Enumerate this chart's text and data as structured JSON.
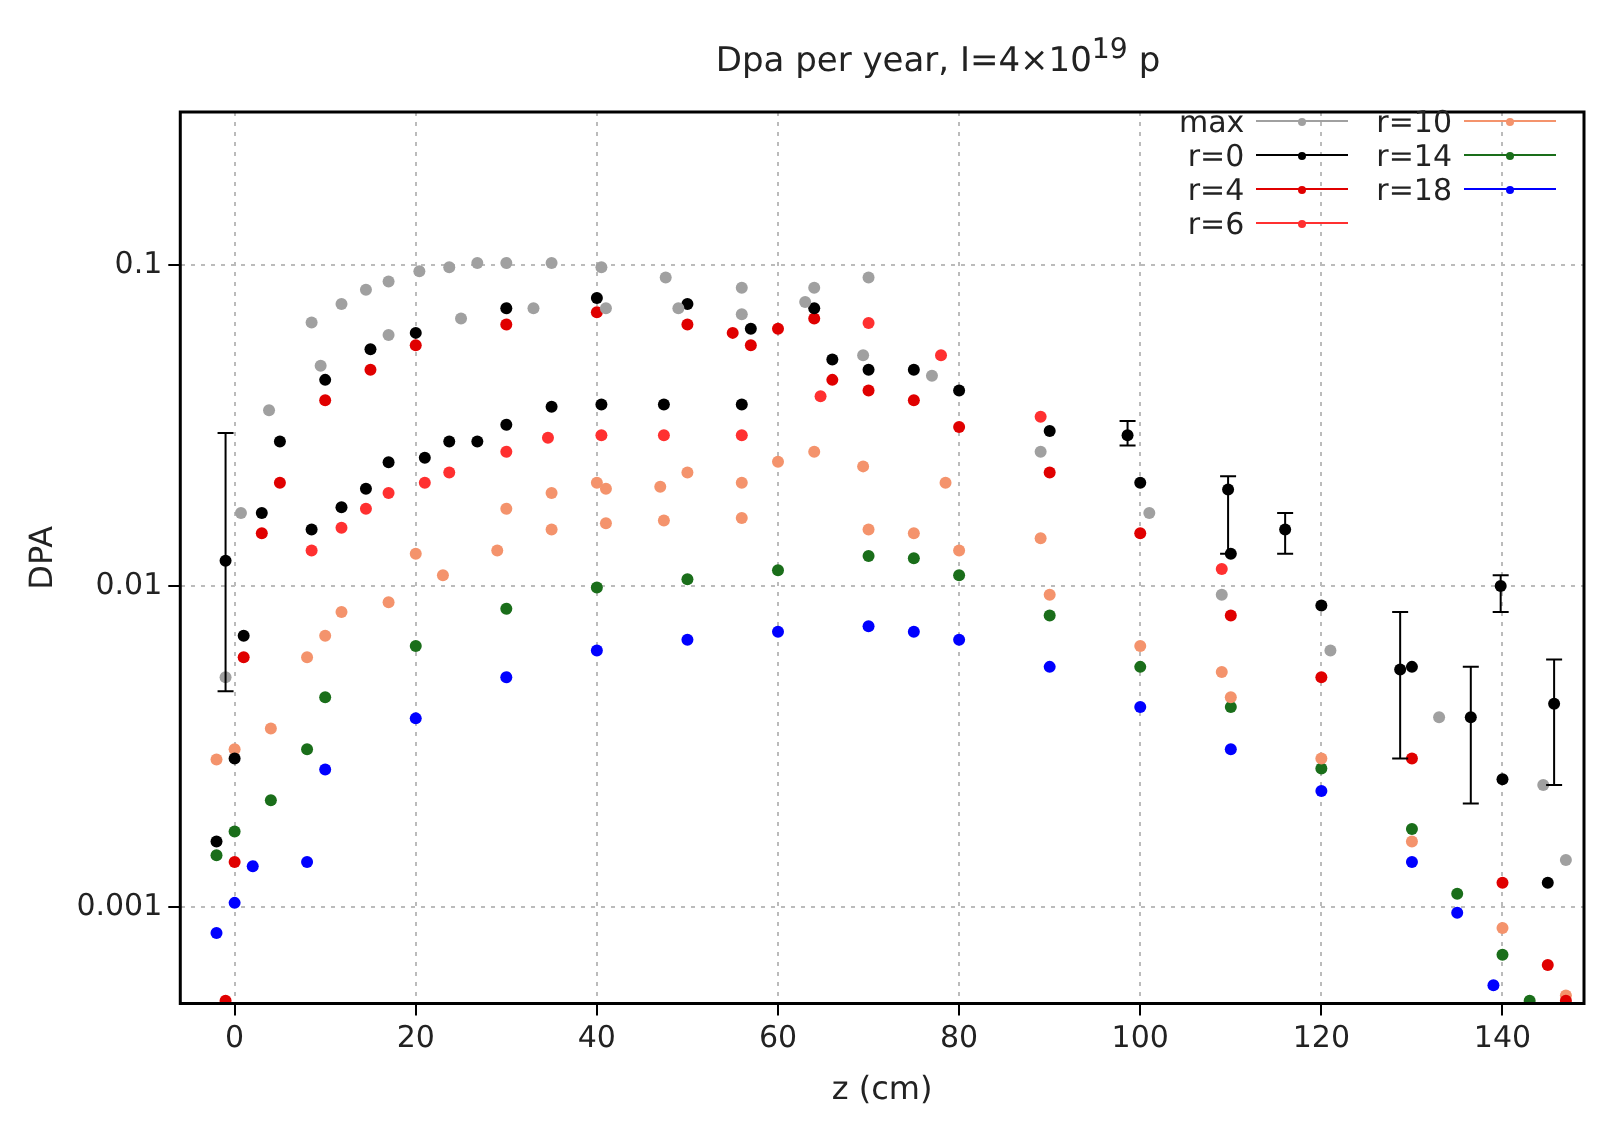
{
  "chart_data": {
    "type": "scatter",
    "title": "Dpa per year, I=4×10$^{19}$ p",
    "xlabel": "z (cm)",
    "ylabel": "DPA",
    "xlim": [
      -6,
      149
    ],
    "xticks": [
      0,
      20,
      40,
      60,
      80,
      100,
      120,
      140
    ],
    "ylim": [
      0.0005,
      0.3
    ],
    "yticks": [
      0.001,
      0.01,
      0.1
    ],
    "log": "y",
    "grid": true,
    "legend": "top right",
    "marker": "circle",
    "series": [
      {
        "name": "max",
        "color": "#a0a0a0",
        "x": [
          -1,
          0.7,
          3.8,
          9.5,
          17,
          25,
          33,
          41,
          49,
          56,
          63,
          69.4,
          77,
          89,
          101,
          109,
          121,
          133,
          144.5,
          147,
          8.5,
          11.8,
          14.5,
          17,
          20.4,
          23.7,
          26.8,
          30,
          35,
          40.5,
          47.6,
          56,
          64,
          70
        ],
        "values": [
          0.0052,
          0.0169,
          0.0353,
          0.0486,
          0.0606,
          0.0682,
          0.0734,
          0.0734,
          0.0734,
          0.0703,
          0.0767,
          0.0524,
          0.0452,
          0.0262,
          0.0169,
          0.0094,
          0.0063,
          0.0039,
          0.0024,
          0.0014,
          0.0662,
          0.0756,
          0.0838,
          0.0889,
          0.0957,
          0.0985,
          0.1015,
          0.1015,
          0.1015,
          0.0985,
          0.0915,
          0.085,
          0.085,
          0.0915
        ]
      },
      {
        "name": "r=0",
        "color": "#000000",
        "x": [
          -2,
          -1,
          0,
          1,
          3,
          5,
          10,
          15,
          20,
          30,
          40,
          50,
          57,
          64,
          66,
          70,
          75,
          80,
          90,
          100,
          110,
          120,
          130,
          140,
          145,
          8.5,
          11.8,
          14.5,
          17,
          21,
          23.7,
          26.8,
          30,
          35,
          40.5,
          47.4,
          56,
          98.6,
          109.7,
          116,
          128.7,
          136.5,
          139.8,
          145.7
        ],
        "values": [
          0.0016,
          0.012,
          0.0029,
          0.007,
          0.0169,
          0.0282,
          0.0439,
          0.0547,
          0.0615,
          0.0734,
          0.079,
          0.0757,
          0.0634,
          0.0734,
          0.0508,
          0.0472,
          0.0472,
          0.0407,
          0.0304,
          0.021,
          0.0126,
          0.0087,
          0.0056,
          0.0025,
          0.00119,
          0.015,
          0.0176,
          0.0201,
          0.0243,
          0.0251,
          0.0282,
          0.0282,
          0.0318,
          0.0362,
          0.0368,
          0.0368,
          0.0368,
          0.0295,
          0.02,
          0.015,
          0.0055,
          0.0039,
          0.01,
          0.0043
        ],
        "errors": [
          null,
          [
            0.0047,
            0.03
          ],
          null,
          null,
          null,
          null,
          null,
          null,
          null,
          null,
          null,
          null,
          null,
          null,
          null,
          null,
          null,
          null,
          null,
          null,
          null,
          null,
          null,
          null,
          null,
          null,
          null,
          null,
          null,
          null,
          null,
          null,
          null,
          null,
          null,
          null,
          null,
          [
            0.0274,
            0.0327
          ],
          [
            0.0126,
            0.022
          ],
          [
            0.0126,
            0.0169
          ],
          [
            0.0029,
            0.0083
          ],
          [
            0.0021,
            0.0056
          ],
          [
            0.0083,
            0.0108
          ],
          [
            0.0024,
            0.0059
          ]
        ]
      },
      {
        "name": "r=4",
        "color": "#e00000",
        "x": [
          -1,
          0,
          1,
          3,
          5,
          10,
          15,
          20,
          30,
          40,
          50,
          55,
          57,
          60,
          64,
          66,
          70,
          75,
          80,
          90,
          100,
          110,
          120,
          130,
          140,
          145,
          147
        ],
        "values": [
          0.00051,
          0.00138,
          0.006,
          0.0146,
          0.021,
          0.0379,
          0.0472,
          0.0563,
          0.0653,
          0.0713,
          0.0653,
          0.0615,
          0.0563,
          0.0634,
          0.0682,
          0.0439,
          0.0407,
          0.0379,
          0.0313,
          0.0226,
          0.0146,
          0.0081,
          0.0052,
          0.0029,
          0.00119,
          0.00066,
          0.00051
        ]
      },
      {
        "name": "r=6",
        "color": "#ff3030",
        "x": [
          8.5,
          11.8,
          14.5,
          17,
          21,
          23.7,
          30,
          34.6,
          40.5,
          47.4,
          56,
          64.7,
          70,
          78,
          89,
          109
        ],
        "values": [
          0.0129,
          0.0152,
          0.0174,
          0.0195,
          0.021,
          0.0226,
          0.0262,
          0.029,
          0.0295,
          0.0295,
          0.0295,
          0.039,
          0.066,
          0.0524,
          0.0337,
          0.0113
        ]
      },
      {
        "name": "r=10",
        "color": "#f4936c",
        "x": [
          -2,
          0,
          4,
          8,
          10,
          20,
          30,
          40,
          50,
          60,
          64,
          70,
          75,
          80,
          90,
          100,
          110,
          120,
          130,
          140,
          147,
          11.8,
          17,
          23,
          29,
          35,
          41,
          47.4,
          56,
          35,
          41,
          47,
          56,
          69.4,
          78.5,
          89,
          109
        ],
        "values": [
          0.00288,
          0.0031,
          0.0036,
          0.006,
          0.007,
          0.0126,
          0.0174,
          0.021,
          0.0226,
          0.0244,
          0.0262,
          0.015,
          0.0146,
          0.0129,
          0.0094,
          0.0065,
          0.0045,
          0.0029,
          0.0016,
          0.00086,
          0.00053,
          0.0083,
          0.0089,
          0.0108,
          0.0129,
          0.015,
          0.0157,
          0.016,
          0.0163,
          0.0195,
          0.0201,
          0.0204,
          0.021,
          0.0236,
          0.021,
          0.0141,
          0.0054
        ]
      },
      {
        "name": "r=14",
        "color": "#1a6e1a",
        "x": [
          -2,
          0,
          4,
          8,
          10,
          20,
          30,
          40,
          50,
          60,
          70,
          75,
          80,
          90,
          100,
          110,
          120,
          130,
          135,
          140,
          143
        ],
        "values": [
          0.00145,
          0.00172,
          0.00215,
          0.0031,
          0.0045,
          0.0065,
          0.0085,
          0.0099,
          0.0105,
          0.0112,
          0.0124,
          0.0122,
          0.0108,
          0.0081,
          0.0056,
          0.0042,
          0.0027,
          0.00175,
          0.0011,
          0.00071,
          0.00051
        ]
      },
      {
        "name": "r=18",
        "color": "#0000ff",
        "x": [
          -2,
          0,
          2,
          8,
          10,
          20,
          30,
          40,
          50,
          60,
          70,
          75,
          80,
          90,
          100,
          110,
          120,
          130,
          135,
          139
        ],
        "values": [
          0.00083,
          0.00103,
          0.00134,
          0.00138,
          0.00268,
          0.00387,
          0.0052,
          0.0063,
          0.0068,
          0.0072,
          0.0075,
          0.0072,
          0.0068,
          0.0056,
          0.0042,
          0.0031,
          0.0023,
          0.00138,
          0.00096,
          0.00057
        ]
      }
    ]
  }
}
